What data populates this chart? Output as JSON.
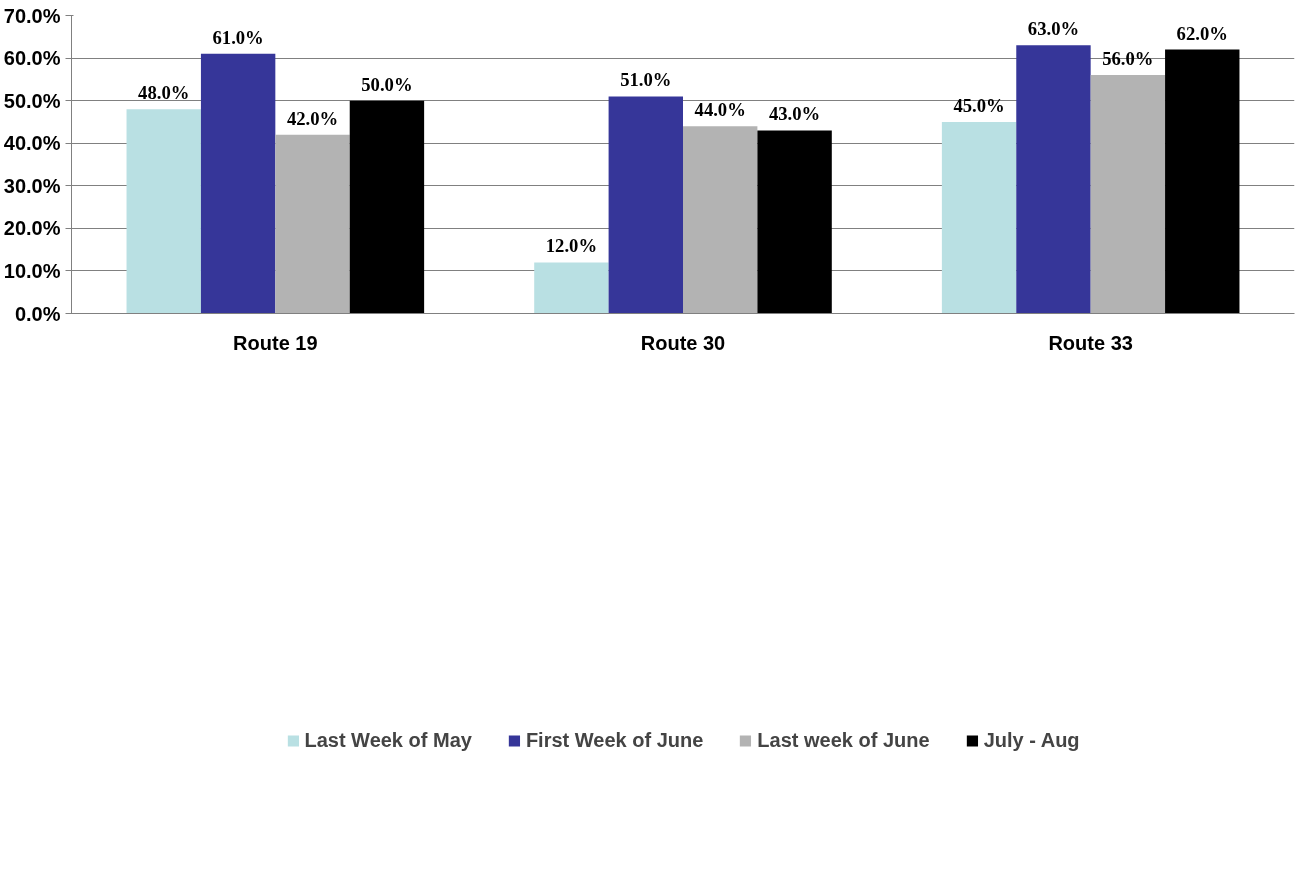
{
  "chart_data": {
    "type": "bar",
    "categories": [
      "Route 19",
      "Route 30",
      "Route 33"
    ],
    "series": [
      {
        "name": "Last Week of May",
        "color": "#b9e0e3",
        "values": [
          48,
          12,
          45
        ],
        "value_labels": [
          "48.0%",
          "12.0%",
          "45.0%"
        ]
      },
      {
        "name": "First Week of June",
        "color": "#363699",
        "values": [
          61,
          51,
          63
        ],
        "value_labels": [
          "61.0%",
          "51.0%",
          "63.0%"
        ]
      },
      {
        "name": "Last week of June",
        "color": "#b3b3b3",
        "values": [
          42,
          44,
          56
        ],
        "value_labels": [
          "42.0%",
          "44.0%",
          "56.0%"
        ]
      },
      {
        "name": "July - Aug",
        "color": "#000000",
        "values": [
          50,
          43,
          62
        ],
        "value_labels": [
          "50.0%",
          "43.0%",
          "62.0%"
        ]
      }
    ],
    "ylim": [
      0,
      70
    ],
    "yticks": [
      {
        "value": 0,
        "label": "0.0%"
      },
      {
        "value": 10,
        "label": "10.0%"
      },
      {
        "value": 20,
        "label": "20.0%"
      },
      {
        "value": 30,
        "label": "30.0%"
      },
      {
        "value": 40,
        "label": "40.0%"
      },
      {
        "value": 50,
        "label": "50.0%"
      },
      {
        "value": 60,
        "label": "60.0%"
      },
      {
        "value": 70,
        "label": "70.0%"
      }
    ],
    "grid": "y",
    "legend": "bottom"
  }
}
